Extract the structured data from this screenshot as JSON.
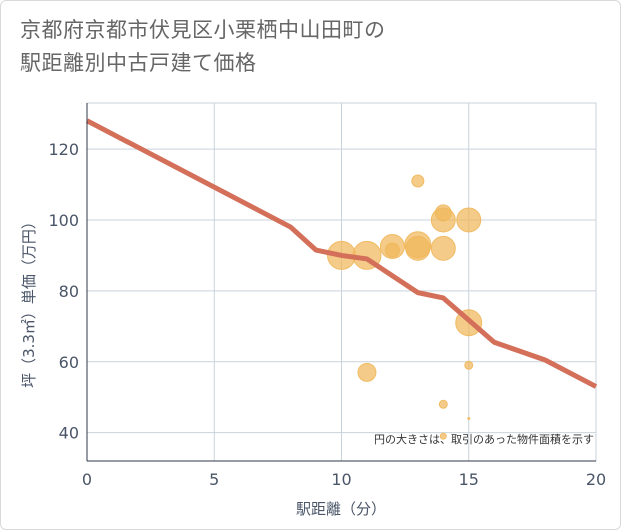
{
  "chart_data": {
    "type": "scatter",
    "title_line1": "京都府京都市伏見区小栗栖中山田町の",
    "title_line2": "駅距離別中古戸建て価格",
    "xlabel": "駅距離（分）",
    "ylabel": "坪（3.3㎡）単価（万円）",
    "xlim": [
      0,
      20
    ],
    "ylim": [
      32,
      133
    ],
    "x_ticks": [
      0,
      5,
      10,
      15,
      20
    ],
    "y_ticks": [
      40,
      60,
      80,
      100,
      120
    ],
    "grid": true,
    "note": "円の大きさは、取引のあった物件面積を示す",
    "colors": {
      "line": "#d4705a",
      "bubble": "#f0b75a",
      "grid": "#c9d3dc"
    },
    "series": [
      {
        "name": "trend",
        "kind": "line",
        "x": [
          0,
          8,
          9,
          10,
          11,
          13,
          14,
          16,
          18,
          20
        ],
        "y": [
          128,
          98,
          91.5,
          90,
          89,
          79.5,
          78,
          65.5,
          60.5,
          53
        ]
      },
      {
        "name": "transactions",
        "kind": "bubble",
        "points": [
          {
            "x": 10,
            "y": 90,
            "size": 14
          },
          {
            "x": 11,
            "y": 90,
            "size": 14
          },
          {
            "x": 11,
            "y": 57,
            "size": 9
          },
          {
            "x": 12,
            "y": 92.5,
            "size": 12
          },
          {
            "x": 12,
            "y": 91.5,
            "size": 7
          },
          {
            "x": 13,
            "y": 93,
            "size": 13
          },
          {
            "x": 13,
            "y": 92,
            "size": 12
          },
          {
            "x": 13,
            "y": 111,
            "size": 6
          },
          {
            "x": 14,
            "y": 100,
            "size": 12
          },
          {
            "x": 14,
            "y": 102,
            "size": 8
          },
          {
            "x": 14,
            "y": 92,
            "size": 12
          },
          {
            "x": 14,
            "y": 48,
            "size": 4
          },
          {
            "x": 14,
            "y": 39,
            "size": 3
          },
          {
            "x": 15,
            "y": 100,
            "size": 12
          },
          {
            "x": 15,
            "y": 71,
            "size": 13
          },
          {
            "x": 15,
            "y": 59,
            "size": 4
          },
          {
            "x": 15,
            "y": 44,
            "size": 1
          }
        ]
      }
    ]
  }
}
